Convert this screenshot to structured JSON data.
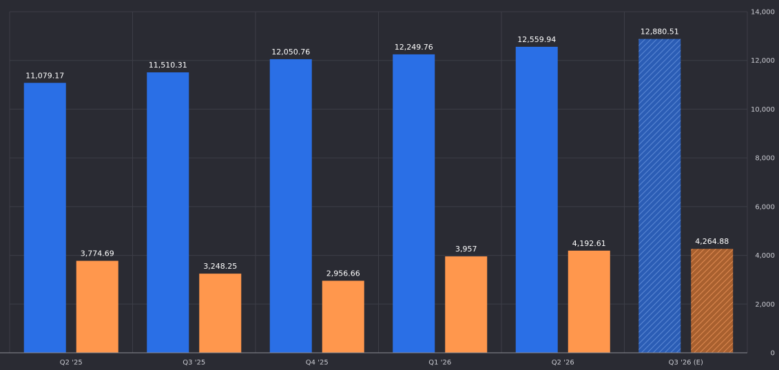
{
  "chart_data": {
    "type": "bar",
    "categories": [
      "Q2 '25",
      "Q3 '25",
      "Q4 '25",
      "Q1 '26",
      "Q2 '26",
      "Q3 '26 (E)"
    ],
    "series": [
      {
        "values": [
          11079.17,
          11510.31,
          12050.76,
          12249.76,
          12559.94,
          12880.51
        ],
        "labels": [
          "11,079.17",
          "11,510.31",
          "12,050.76",
          "12,249.76",
          "12,559.94",
          "12,880.51"
        ],
        "color": "#2a6fe6"
      },
      {
        "values": [
          3774.69,
          3248.25,
          2956.66,
          3957,
          4192.61,
          4264.88
        ],
        "labels": [
          "3,774.69",
          "3,248.25",
          "2,956.66",
          "3,957",
          "4,192.61",
          "4,264.88"
        ],
        "color": "#ff974d"
      }
    ],
    "estimated_categories": [
      "Q3 '26 (E)"
    ],
    "ylim": [
      0,
      14000
    ],
    "yticks": [
      0,
      2000,
      4000,
      6000,
      8000,
      10000,
      12000,
      14000
    ],
    "ytick_labels": [
      "0",
      "2,000",
      "4,000",
      "6,000",
      "8,000",
      "10,000",
      "12,000",
      "14,000"
    ],
    "y_axis_side": "right",
    "grid": true,
    "legend": false,
    "colors": {
      "background": "#2a2b33",
      "grid": "#3d3e47",
      "axis_text": "#c9cad1",
      "label_text": "#ffffff",
      "estimate_blue": "#2c5aa8",
      "estimate_orange": "#b56a3a"
    }
  }
}
